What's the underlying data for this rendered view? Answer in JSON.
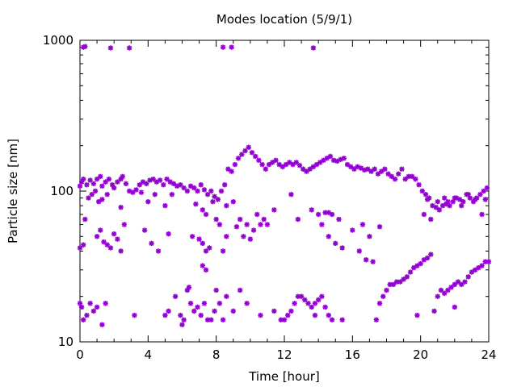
{
  "chart_data": {
    "type": "scatter",
    "title": "Modes location (5/9/1)",
    "xlabel": "Time [hour]",
    "ylabel": "Particle size [nm]",
    "xlim": [
      0,
      24
    ],
    "ylim": [
      10,
      1000
    ],
    "y_scale": "log",
    "grid": false,
    "legend": "none",
    "marker_color": "#9400d3",
    "x_ticks": [
      {
        "value": 0,
        "label": "0"
      },
      {
        "value": 4,
        "label": "4"
      },
      {
        "value": 8,
        "label": "8"
      },
      {
        "value": 12,
        "label": "12"
      },
      {
        "value": 16,
        "label": "16"
      },
      {
        "value": 20,
        "label": "20"
      },
      {
        "value": 24,
        "label": "24"
      }
    ],
    "y_ticks": [
      {
        "value": 10,
        "label": "10"
      },
      {
        "value": 100,
        "label": "100"
      },
      {
        "value": 1000,
        "label": "1000"
      }
    ],
    "series": [
      {
        "points": [
          [
            0.2,
            900
          ],
          [
            0.3,
            910
          ],
          [
            1.8,
            890
          ],
          [
            2.9,
            890
          ],
          [
            8.4,
            900
          ],
          [
            8.9,
            900
          ],
          [
            13.7,
            890
          ],
          [
            0.0,
            108
          ],
          [
            0.1,
            115
          ],
          [
            0.2,
            120
          ],
          [
            0.4,
            110
          ],
          [
            0.6,
            118
          ],
          [
            0.8,
            112
          ],
          [
            1.0,
            120
          ],
          [
            1.2,
            125
          ],
          [
            1.3,
            108
          ],
          [
            1.5,
            115
          ],
          [
            1.7,
            120
          ],
          [
            1.9,
            110
          ],
          [
            2.0,
            105
          ],
          [
            2.2,
            115
          ],
          [
            2.4,
            120
          ],
          [
            2.5,
            125
          ],
          [
            2.7,
            112
          ],
          [
            2.9,
            100
          ],
          [
            3.1,
            98
          ],
          [
            3.3,
            102
          ],
          [
            3.5,
            110
          ],
          [
            3.7,
            115
          ],
          [
            3.9,
            112
          ],
          [
            4.1,
            118
          ],
          [
            4.3,
            120
          ],
          [
            4.5,
            115
          ],
          [
            4.7,
            118
          ],
          [
            4.9,
            110
          ],
          [
            5.1,
            120
          ],
          [
            5.3,
            115
          ],
          [
            5.5,
            112
          ],
          [
            5.7,
            108
          ],
          [
            5.9,
            110
          ],
          [
            6.1,
            105
          ],
          [
            6.3,
            100
          ],
          [
            6.5,
            108
          ],
          [
            6.7,
            105
          ],
          [
            6.9,
            100
          ],
          [
            7.1,
            110
          ],
          [
            7.3,
            102
          ],
          [
            7.5,
            95
          ],
          [
            7.7,
            100
          ],
          [
            7.9,
            92
          ],
          [
            8.1,
            88
          ],
          [
            8.3,
            100
          ],
          [
            8.5,
            110
          ],
          [
            8.7,
            140
          ],
          [
            8.9,
            135
          ],
          [
            9.1,
            150
          ],
          [
            9.3,
            165
          ],
          [
            9.5,
            175
          ],
          [
            9.7,
            185
          ],
          [
            9.9,
            195
          ],
          [
            10.1,
            180
          ],
          [
            10.3,
            170
          ],
          [
            10.5,
            160
          ],
          [
            10.7,
            150
          ],
          [
            10.9,
            140
          ],
          [
            11.1,
            150
          ],
          [
            11.3,
            155
          ],
          [
            11.5,
            160
          ],
          [
            11.7,
            150
          ],
          [
            11.9,
            145
          ],
          [
            12.1,
            150
          ],
          [
            12.3,
            155
          ],
          [
            12.5,
            150
          ],
          [
            12.7,
            155
          ],
          [
            12.9,
            148
          ],
          [
            13.1,
            140
          ],
          [
            13.3,
            135
          ],
          [
            13.5,
            140
          ],
          [
            13.7,
            145
          ],
          [
            13.9,
            150
          ],
          [
            14.1,
            155
          ],
          [
            14.3,
            160
          ],
          [
            14.5,
            165
          ],
          [
            14.7,
            170
          ],
          [
            14.9,
            160
          ],
          [
            15.1,
            158
          ],
          [
            15.3,
            162
          ],
          [
            15.5,
            165
          ],
          [
            15.7,
            150
          ],
          [
            15.9,
            145
          ],
          [
            16.1,
            140
          ],
          [
            16.3,
            145
          ],
          [
            16.5,
            142
          ],
          [
            16.7,
            138
          ],
          [
            16.9,
            140
          ],
          [
            17.1,
            135
          ],
          [
            17.3,
            140
          ],
          [
            17.5,
            130
          ],
          [
            17.7,
            135
          ],
          [
            17.9,
            140
          ],
          [
            18.1,
            130
          ],
          [
            18.3,
            125
          ],
          [
            18.5,
            120
          ],
          [
            18.7,
            130
          ],
          [
            18.9,
            140
          ],
          [
            19.1,
            120
          ],
          [
            19.3,
            125
          ],
          [
            19.5,
            125
          ],
          [
            19.7,
            120
          ],
          [
            19.9,
            110
          ],
          [
            20.1,
            100
          ],
          [
            20.3,
            95
          ],
          [
            20.5,
            90
          ],
          [
            20.7,
            80
          ],
          [
            20.9,
            78
          ],
          [
            21.1,
            75
          ],
          [
            21.3,
            80
          ],
          [
            21.5,
            82
          ],
          [
            21.7,
            80
          ],
          [
            21.9,
            85
          ],
          [
            22.1,
            90
          ],
          [
            22.3,
            88
          ],
          [
            22.5,
            85
          ],
          [
            22.7,
            95
          ],
          [
            22.9,
            90
          ],
          [
            23.1,
            85
          ],
          [
            23.3,
            90
          ],
          [
            23.5,
            95
          ],
          [
            23.7,
            100
          ],
          [
            23.9,
            105
          ],
          [
            0.3,
            65
          ],
          [
            0.5,
            90
          ],
          [
            0.7,
            95
          ],
          [
            0.9,
            100
          ],
          [
            1.1,
            85
          ],
          [
            1.3,
            88
          ],
          [
            1.6,
            95
          ],
          [
            2.4,
            78
          ],
          [
            2.6,
            60
          ],
          [
            3.6,
            98
          ],
          [
            4.0,
            85
          ],
          [
            4.4,
            95
          ],
          [
            5.0,
            80
          ],
          [
            5.4,
            95
          ],
          [
            6.8,
            82
          ],
          [
            7.2,
            75
          ],
          [
            7.4,
            70
          ],
          [
            7.8,
            85
          ],
          [
            8.0,
            65
          ],
          [
            8.2,
            60
          ],
          [
            8.6,
            80
          ],
          [
            9.0,
            85
          ],
          [
            9.4,
            65
          ],
          [
            9.8,
            60
          ],
          [
            10.2,
            55
          ],
          [
            10.4,
            70
          ],
          [
            10.6,
            60
          ],
          [
            10.8,
            65
          ],
          [
            11.0,
            60
          ],
          [
            11.4,
            75
          ],
          [
            12.4,
            95
          ],
          [
            12.8,
            65
          ],
          [
            13.6,
            75
          ],
          [
            14.0,
            70
          ],
          [
            14.4,
            72
          ],
          [
            14.6,
            72
          ],
          [
            14.8,
            70
          ],
          [
            15.2,
            65
          ],
          [
            16.0,
            55
          ],
          [
            16.6,
            60
          ],
          [
            17.0,
            50
          ],
          [
            17.6,
            58
          ],
          [
            20.2,
            70
          ],
          [
            20.4,
            88
          ],
          [
            20.6,
            65
          ],
          [
            21.0,
            85
          ],
          [
            21.4,
            90
          ],
          [
            21.6,
            85
          ],
          [
            22.0,
            90
          ],
          [
            22.4,
            80
          ],
          [
            22.8,
            95
          ],
          [
            23.2,
            88
          ],
          [
            23.6,
            70
          ],
          [
            23.8,
            88
          ],
          [
            0.0,
            42
          ],
          [
            0.2,
            44
          ],
          [
            1.0,
            50
          ],
          [
            1.2,
            55
          ],
          [
            1.4,
            46
          ],
          [
            1.6,
            44
          ],
          [
            1.8,
            42
          ],
          [
            2.0,
            52
          ],
          [
            2.2,
            48
          ],
          [
            2.4,
            40
          ],
          [
            3.8,
            55
          ],
          [
            4.2,
            45
          ],
          [
            4.6,
            40
          ],
          [
            5.2,
            52
          ],
          [
            6.6,
            50
          ],
          [
            7.0,
            48
          ],
          [
            7.2,
            45
          ],
          [
            7.4,
            40
          ],
          [
            7.6,
            42
          ],
          [
            8.4,
            40
          ],
          [
            8.6,
            50
          ],
          [
            9.2,
            58
          ],
          [
            9.6,
            50
          ],
          [
            10.0,
            48
          ],
          [
            14.2,
            60
          ],
          [
            14.6,
            50
          ],
          [
            15.0,
            45
          ],
          [
            15.4,
            42
          ],
          [
            16.4,
            40
          ],
          [
            16.8,
            35
          ],
          [
            17.2,
            34
          ],
          [
            7.2,
            32
          ],
          [
            7.4,
            30
          ],
          [
            0.0,
            18
          ],
          [
            0.1,
            17
          ],
          [
            0.2,
            14
          ],
          [
            0.4,
            15
          ],
          [
            0.6,
            18
          ],
          [
            0.8,
            16
          ],
          [
            1.0,
            17
          ],
          [
            1.3,
            13
          ],
          [
            1.5,
            18
          ],
          [
            3.2,
            15
          ],
          [
            5.0,
            15
          ],
          [
            5.2,
            16
          ],
          [
            5.6,
            20
          ],
          [
            5.9,
            15
          ],
          [
            6.0,
            13
          ],
          [
            6.1,
            14
          ],
          [
            6.3,
            22
          ],
          [
            6.4,
            23
          ],
          [
            6.5,
            18
          ],
          [
            6.7,
            16
          ],
          [
            6.9,
            17
          ],
          [
            7.1,
            15
          ],
          [
            7.3,
            18
          ],
          [
            7.5,
            14
          ],
          [
            7.7,
            14
          ],
          [
            7.9,
            16
          ],
          [
            8.0,
            22
          ],
          [
            8.2,
            18
          ],
          [
            8.4,
            14
          ],
          [
            8.6,
            20
          ],
          [
            9.0,
            16
          ],
          [
            9.4,
            22
          ],
          [
            9.8,
            18
          ],
          [
            10.6,
            15
          ],
          [
            11.4,
            16
          ],
          [
            11.8,
            14
          ],
          [
            12.0,
            14
          ],
          [
            12.2,
            15
          ],
          [
            12.4,
            16
          ],
          [
            12.6,
            18
          ],
          [
            12.8,
            20
          ],
          [
            13.0,
            20
          ],
          [
            13.2,
            19
          ],
          [
            13.4,
            18
          ],
          [
            13.6,
            17
          ],
          [
            13.8,
            18
          ],
          [
            14.0,
            19
          ],
          [
            14.2,
            20
          ],
          [
            14.4,
            17
          ],
          [
            14.6,
            15
          ],
          [
            14.8,
            14
          ],
          [
            15.4,
            14
          ],
          [
            17.4,
            14
          ],
          [
            17.6,
            18
          ],
          [
            17.8,
            20
          ],
          [
            18.0,
            22
          ],
          [
            18.2,
            24
          ],
          [
            18.4,
            24
          ],
          [
            18.6,
            25
          ],
          [
            18.8,
            25
          ],
          [
            19.0,
            26
          ],
          [
            19.2,
            27
          ],
          [
            19.4,
            29
          ],
          [
            19.6,
            31
          ],
          [
            19.8,
            32
          ],
          [
            20.0,
            33
          ],
          [
            20.2,
            35
          ],
          [
            20.4,
            36
          ],
          [
            20.6,
            38
          ],
          [
            20.8,
            16
          ],
          [
            21.0,
            20
          ],
          [
            21.2,
            22
          ],
          [
            21.4,
            21
          ],
          [
            21.6,
            22
          ],
          [
            21.8,
            23
          ],
          [
            22.0,
            24
          ],
          [
            22.2,
            25
          ],
          [
            22.4,
            24
          ],
          [
            22.6,
            25
          ],
          [
            22.8,
            27
          ],
          [
            23.0,
            29
          ],
          [
            23.2,
            30
          ],
          [
            23.4,
            31
          ],
          [
            23.6,
            32
          ],
          [
            23.8,
            34
          ],
          [
            24.0,
            34
          ],
          [
            22.0,
            17
          ],
          [
            19.8,
            15
          ],
          [
            13.8,
            15
          ]
        ]
      }
    ]
  }
}
